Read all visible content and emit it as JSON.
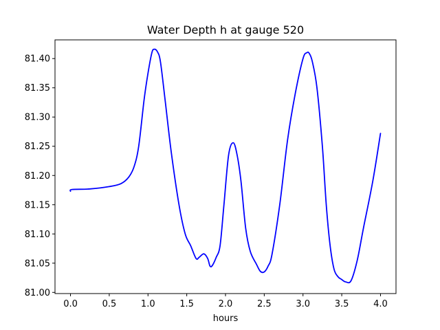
{
  "chart_data": {
    "type": "line",
    "title": "Water Depth h at gauge 520",
    "xlabel": "hours",
    "ylabel": "",
    "xlim": [
      -0.2,
      4.2
    ],
    "ylim": [
      80.998,
      81.432
    ],
    "xticks": [
      0.0,
      0.5,
      1.0,
      1.5,
      2.0,
      2.5,
      3.0,
      3.5,
      4.0
    ],
    "xtick_labels": [
      "0.0",
      "0.5",
      "1.0",
      "1.5",
      "2.0",
      "2.5",
      "3.0",
      "3.5",
      "4.0"
    ],
    "yticks": [
      81.0,
      81.05,
      81.1,
      81.15,
      81.2,
      81.25,
      81.3,
      81.35,
      81.4
    ],
    "ytick_labels": [
      "81.00",
      "81.05",
      "81.10",
      "81.15",
      "81.20",
      "81.25",
      "81.30",
      "81.35",
      "81.40"
    ],
    "grid": false,
    "line_color": "#0000ff",
    "series": [
      {
        "x": [
          0.0,
          0.02,
          0.25,
          0.5,
          0.65,
          0.75,
          0.82,
          0.88,
          0.95,
          1.0,
          1.05,
          1.08,
          1.12,
          1.16,
          1.22,
          1.3,
          1.4,
          1.48,
          1.55,
          1.62,
          1.66,
          1.72,
          1.77,
          1.8,
          1.83,
          1.88,
          1.93,
          1.98,
          2.04,
          2.1,
          2.15,
          2.2,
          2.26,
          2.32,
          2.4,
          2.45,
          2.5,
          2.55,
          2.6,
          2.7,
          2.8,
          2.9,
          3.0,
          3.05,
          3.08,
          3.12,
          3.18,
          3.25,
          3.3,
          3.35,
          3.4,
          3.45,
          3.5,
          3.55,
          3.62,
          3.7,
          3.78,
          3.9,
          4.0
        ],
        "y": [
          81.173,
          81.176,
          81.177,
          81.181,
          81.186,
          81.197,
          81.215,
          81.25,
          81.33,
          81.375,
          81.41,
          81.416,
          81.412,
          81.395,
          81.33,
          81.24,
          81.15,
          81.1,
          81.08,
          81.058,
          81.06,
          81.066,
          81.058,
          81.045,
          81.046,
          81.06,
          81.08,
          81.15,
          81.235,
          81.256,
          81.235,
          81.19,
          81.11,
          81.07,
          81.048,
          81.036,
          81.035,
          81.045,
          81.065,
          81.15,
          81.26,
          81.34,
          81.4,
          81.41,
          81.409,
          81.395,
          81.35,
          81.25,
          81.15,
          81.08,
          81.04,
          81.027,
          81.022,
          81.018,
          81.02,
          81.055,
          81.11,
          81.19,
          81.272
        ]
      }
    ]
  }
}
